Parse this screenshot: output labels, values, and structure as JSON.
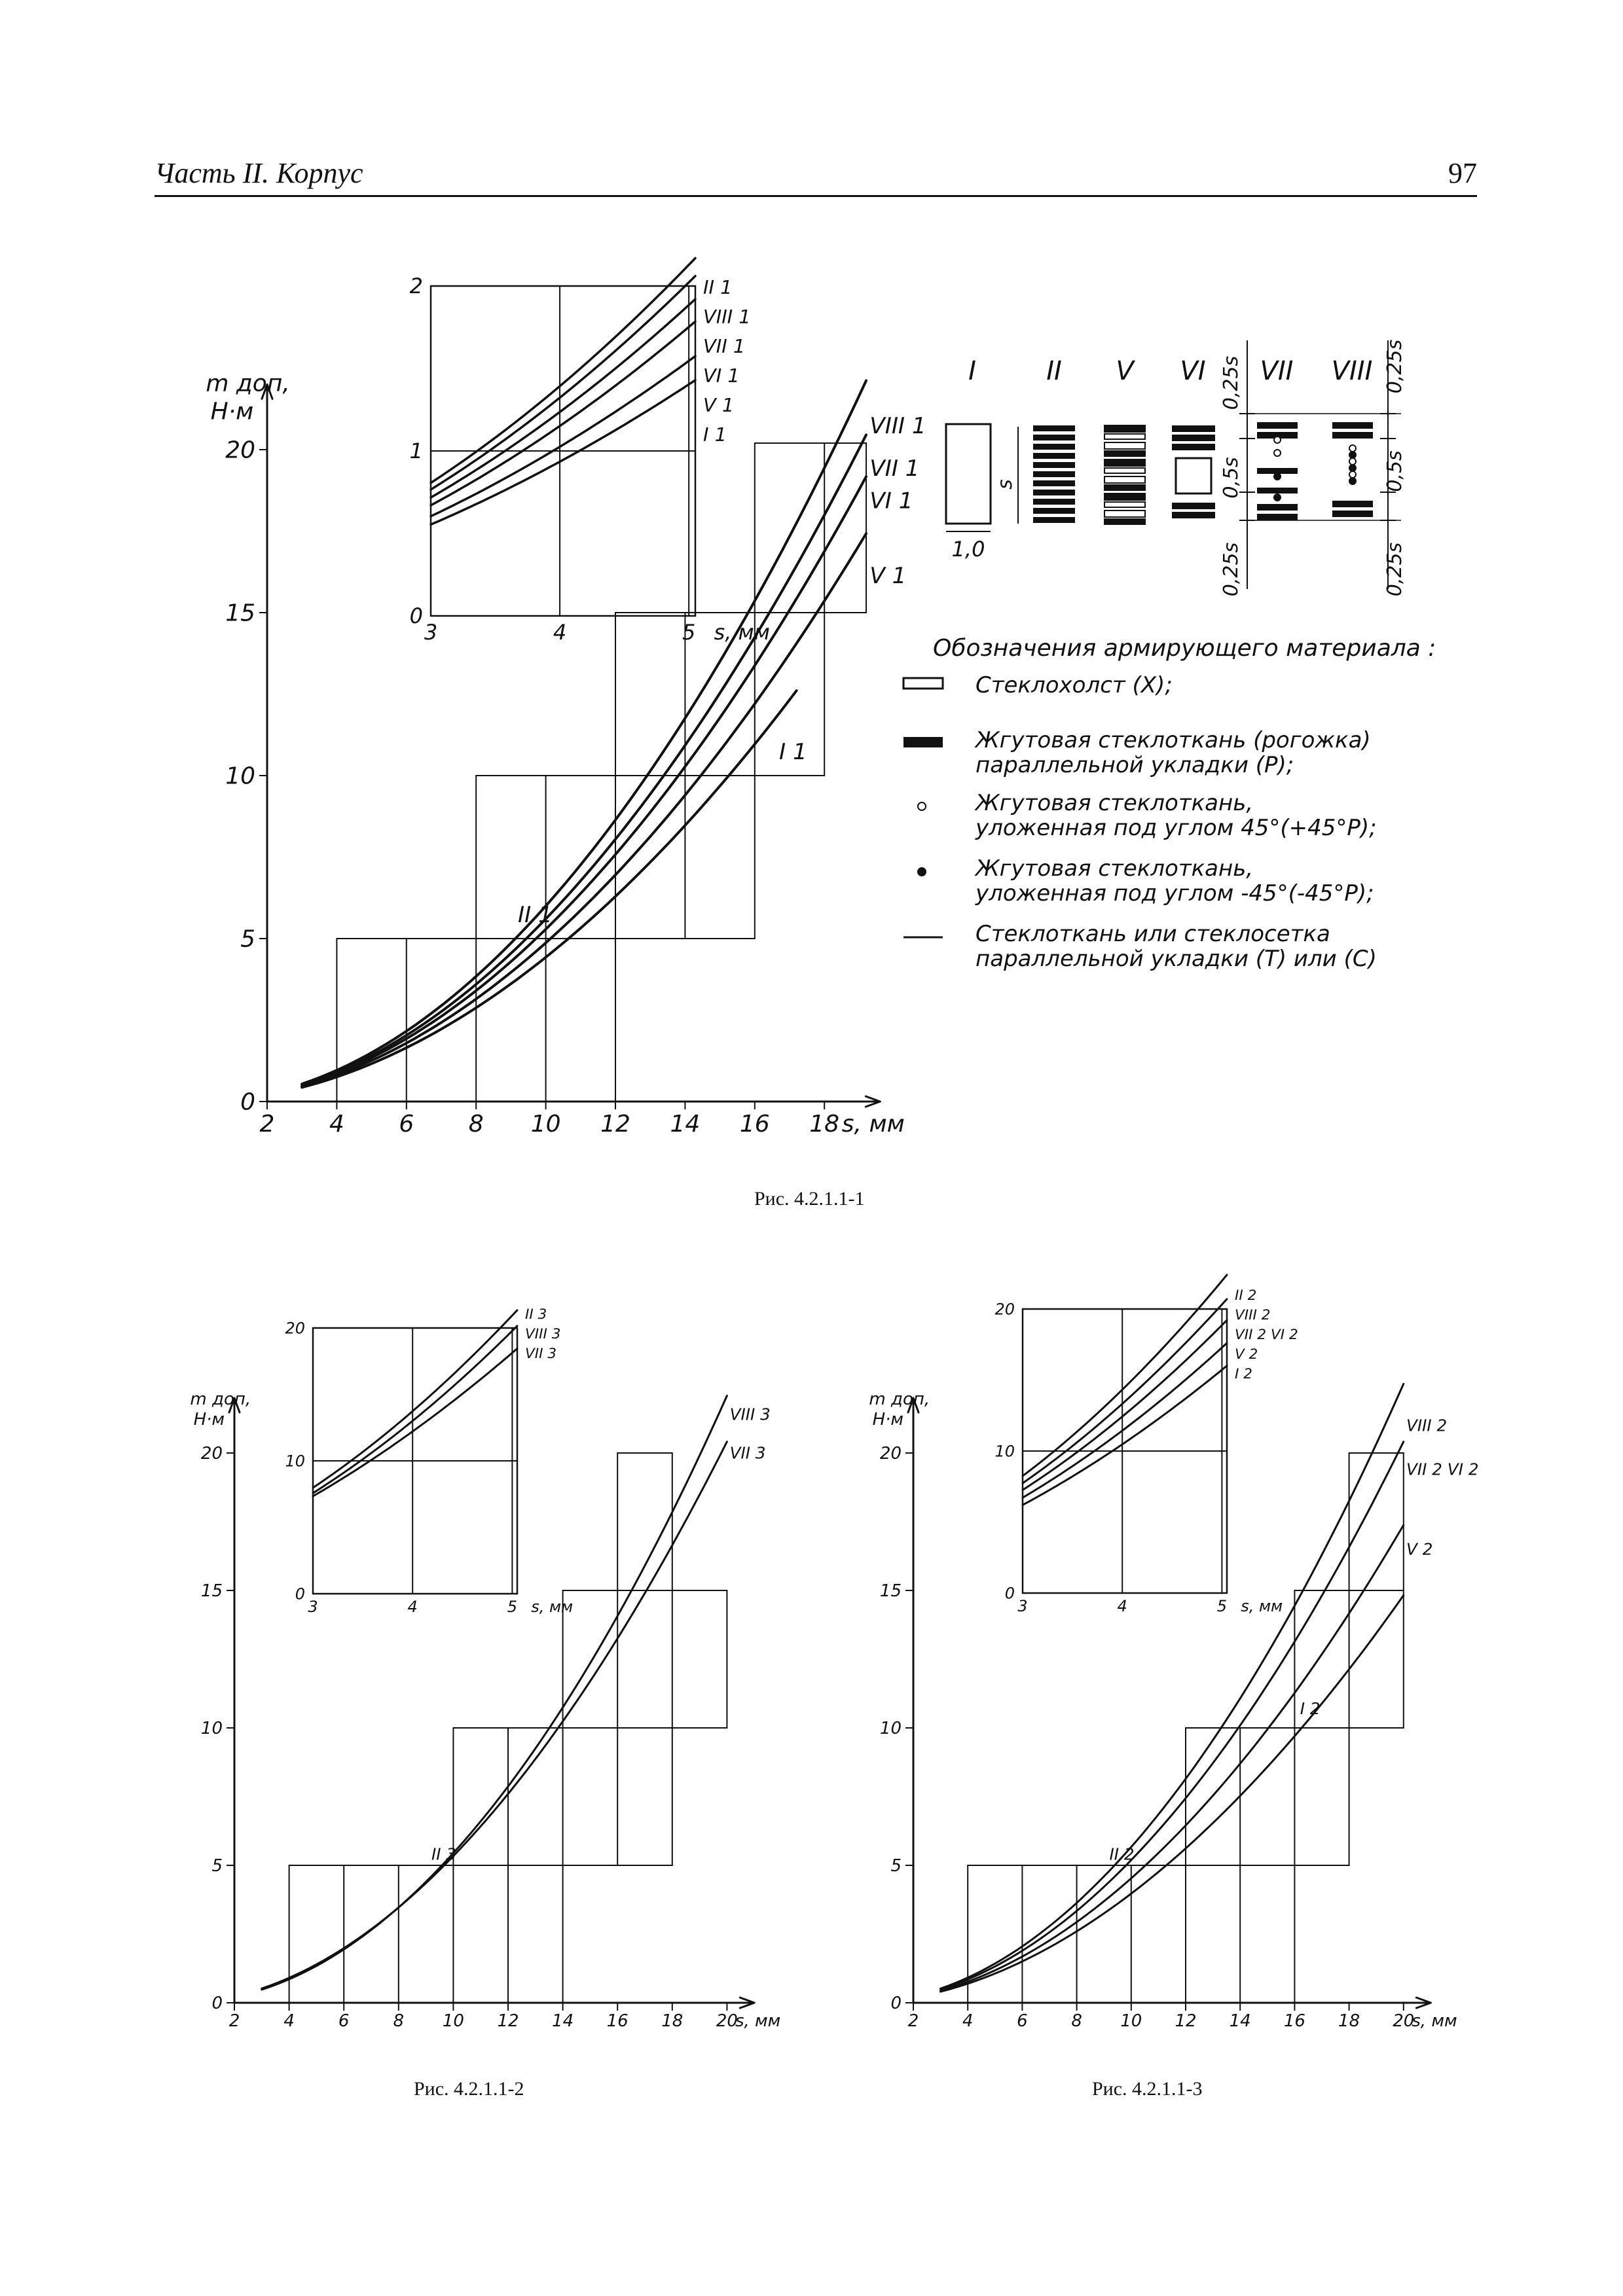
{
  "header": {
    "section": "Часть II. Корпус",
    "page_number": "97"
  },
  "legend": {
    "title": "Обозначения армирующего материала :",
    "items": [
      {
        "symbol": "open-rect",
        "line1": "Стеклохолст (Х);",
        "line2": ""
      },
      {
        "symbol": "filled-rect",
        "line1": "Жгутовая стеклоткань (рогожка)",
        "line2": "параллельной укладки (Р);"
      },
      {
        "symbol": "open-circle",
        "line1": "Жгутовая стеклоткань,",
        "line2": "уложенная под углом 45°(+45°Р);"
      },
      {
        "symbol": "filled-circle",
        "line1": "Жгутовая стеклоткань,",
        "line2": "уложенная под углом -45°(-45°Р);"
      },
      {
        "symbol": "line",
        "line1": "Стеклоткань или стеклосетка",
        "line2": "параллельной укладки (Т) или (С)"
      }
    ],
    "schema_labels": [
      "I",
      "II",
      "V",
      "VI",
      "VII",
      "VIII"
    ],
    "dim_s": "s",
    "dim_width": "1,0",
    "dim_025s": "0,25s",
    "dim_05s": "0,5s"
  },
  "charts": [
    {
      "id": "fig1",
      "caption": "Рис. 4.2.1.1-1",
      "ylabel": "m доп, Н·м",
      "xlabel": "s, мм",
      "xticks": [
        "2",
        "4",
        "6",
        "8",
        "10",
        "12",
        "14",
        "16",
        "18"
      ],
      "yticks": [
        "0",
        "5",
        "10",
        "15",
        "20"
      ],
      "curve_labels": {
        "top": "VIII 1",
        "a": "VII 1",
        "b": "VI 1",
        "c": "V 1",
        "d": "I 1",
        "mid": "II 1"
      },
      "inset": {
        "xticks": [
          "3",
          "4",
          "5"
        ],
        "xlabel": "s, мм",
        "yticks": [
          "0",
          "1",
          "2"
        ],
        "curve_labels": [
          "II 1",
          "VIII 1",
          "VII 1",
          "VI 1",
          "V 1",
          "I 1"
        ]
      }
    },
    {
      "id": "fig2",
      "caption": "Рис. 4.2.1.1-2",
      "ylabel": "m доп, Н·м",
      "xlabel": "s, мм",
      "xticks": [
        "2",
        "4",
        "6",
        "8",
        "10",
        "12",
        "14",
        "16",
        "18",
        "20"
      ],
      "yticks": [
        "0",
        "5",
        "10",
        "15",
        "20"
      ],
      "curve_labels": {
        "top": "VIII 3",
        "a": "VII 3",
        "mid": "II 3"
      },
      "inset": {
        "xticks": [
          "3",
          "4",
          "5"
        ],
        "xlabel": "s, мм",
        "yticks": [
          "0",
          "10",
          "20"
        ],
        "curve_labels": [
          "II 3",
          "VIII 3",
          "VII 3"
        ]
      }
    },
    {
      "id": "fig3",
      "caption": "Рис. 4.2.1.1-3",
      "ylabel": "m доп, Н·м",
      "xlabel": "s, мм",
      "xticks": [
        "2",
        "4",
        "6",
        "8",
        "10",
        "12",
        "14",
        "16",
        "18",
        "20"
      ],
      "yticks": [
        "0",
        "5",
        "10",
        "15",
        "20"
      ],
      "curve_labels": {
        "top": "VIII 2",
        "a": "VII 2 VI 2",
        "b": "V 2",
        "d": "I 2",
        "mid": "II 2"
      },
      "inset": {
        "xticks": [
          "3",
          "4",
          "5"
        ],
        "xlabel": "s, мм",
        "yticks": [
          "0",
          "10",
          "20"
        ],
        "curve_labels": [
          "II 2",
          "VIII 2",
          "VII 2 VI 2",
          "V 2",
          "I 2"
        ]
      }
    }
  ]
}
